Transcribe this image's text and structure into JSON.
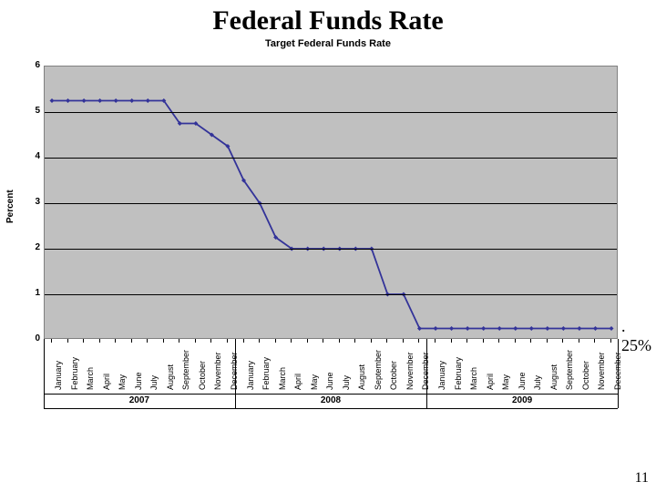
{
  "titles": {
    "main": "Federal Funds Rate",
    "sub": "Target Federal Funds Rate",
    "y_axis": "Percent"
  },
  "page_number": "11",
  "callout": ". 25%",
  "chart": {
    "type": "line",
    "background_color": "#c0c0c0",
    "plot_border_color": "#808080",
    "grid_color": "#000000",
    "line_color": "#333399",
    "marker_color": "#333399",
    "marker_shape": "diamond",
    "marker_size": 5,
    "line_width": 1.8,
    "ylim": [
      0,
      6
    ],
    "ytick_step": 1,
    "ytick_labels": [
      "0",
      "1",
      "2",
      "3",
      "4",
      "5",
      "6"
    ],
    "y_tick_fontsize": 10,
    "x_months": [
      "January",
      "February",
      "March",
      "April",
      "May",
      "June",
      "July",
      "August",
      "September",
      "October",
      "November",
      "December"
    ],
    "x_years": [
      "2007",
      "2008",
      "2009"
    ],
    "x_label_fontsize": 9,
    "year_label_fontsize": 10,
    "values": [
      5.25,
      5.25,
      5.25,
      5.25,
      5.25,
      5.25,
      5.25,
      5.25,
      4.75,
      4.75,
      4.5,
      4.25,
      3.5,
      3.0,
      2.25,
      2.0,
      2.0,
      2.0,
      2.0,
      2.0,
      2.0,
      1.0,
      1.0,
      0.25,
      0.25,
      0.25,
      0.25,
      0.25,
      0.25,
      0.25,
      0.25,
      0.25,
      0.25,
      0.25,
      0.25,
      0.25
    ]
  }
}
